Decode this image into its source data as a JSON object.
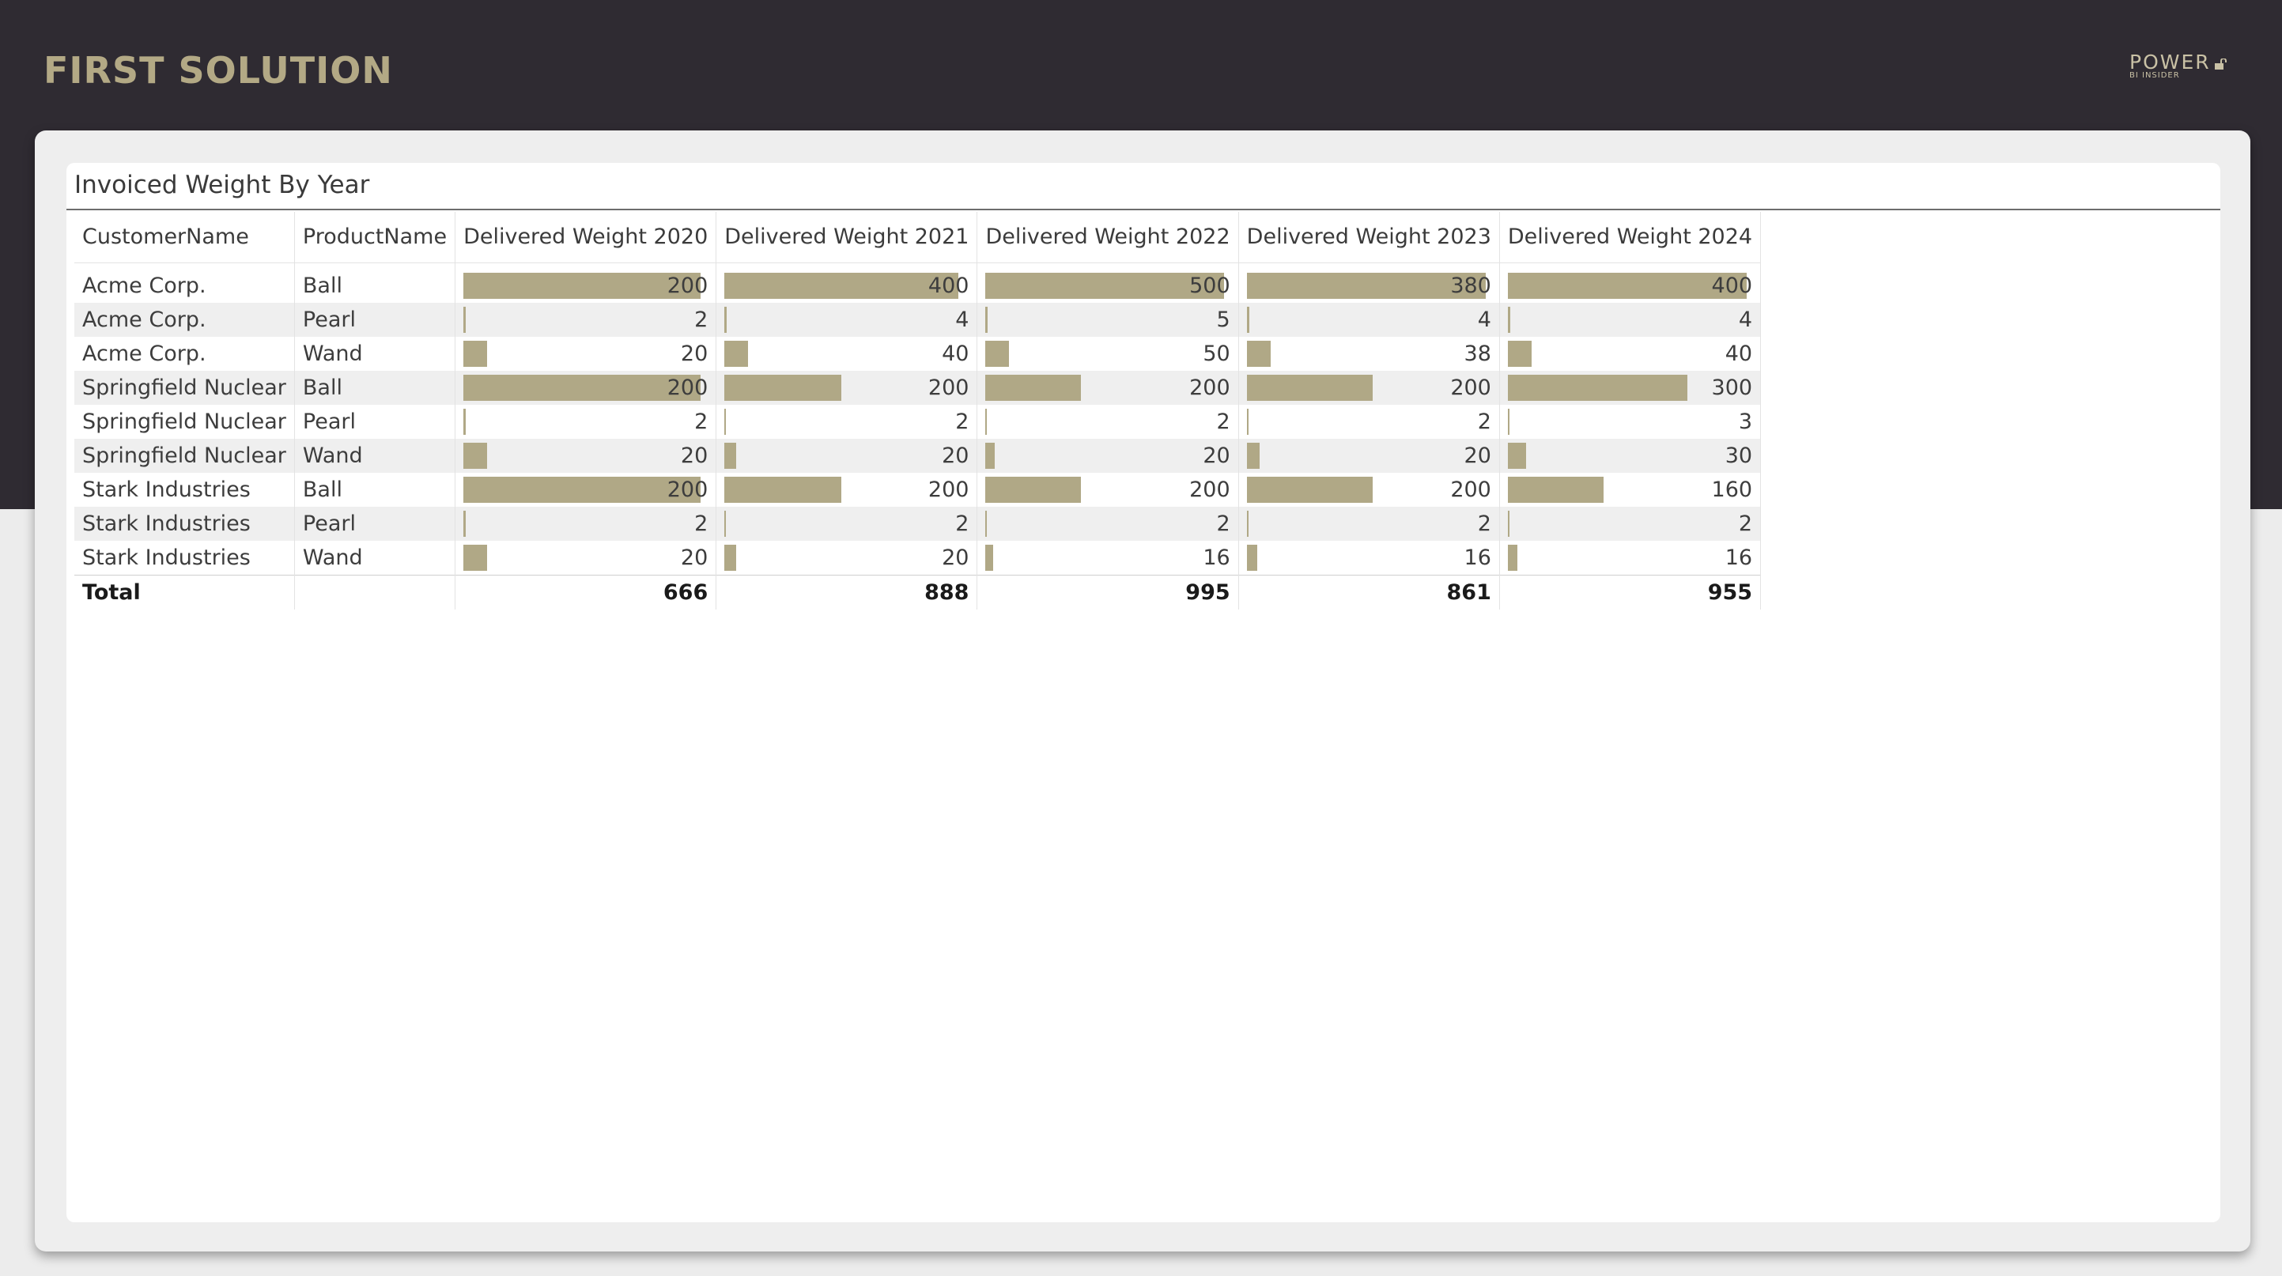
{
  "page": {
    "title": "FIRST SOLUTION",
    "logo": {
      "main": "POWER",
      "sub": "BI INSIDER"
    }
  },
  "colors": {
    "header_bg": "#2f2b32",
    "accent": "#b3a985",
    "bar": "#b0a886",
    "canvas": "#eeeeee"
  },
  "visual": {
    "title": "Invoiced Weight By Year",
    "columns": [
      "CustomerName",
      "ProductName",
      "Delivered Weight 2020",
      "Delivered Weight 2021",
      "Delivered Weight 2022",
      "Delivered Weight 2023",
      "Delivered Weight 2024"
    ],
    "rows": [
      {
        "customer": "Acme Corp.",
        "product": "Ball",
        "values": [
          200,
          400,
          500,
          380,
          400
        ]
      },
      {
        "customer": "Acme Corp.",
        "product": "Pearl",
        "values": [
          2,
          4,
          5,
          4,
          4
        ]
      },
      {
        "customer": "Acme Corp.",
        "product": "Wand",
        "values": [
          20,
          40,
          50,
          38,
          40
        ]
      },
      {
        "customer": "Springfield Nuclear",
        "product": "Ball",
        "values": [
          200,
          200,
          200,
          200,
          300
        ]
      },
      {
        "customer": "Springfield Nuclear",
        "product": "Pearl",
        "values": [
          2,
          2,
          2,
          2,
          3
        ]
      },
      {
        "customer": "Springfield Nuclear",
        "product": "Wand",
        "values": [
          20,
          20,
          20,
          20,
          30
        ]
      },
      {
        "customer": "Stark Industries",
        "product": "Ball",
        "values": [
          200,
          200,
          200,
          200,
          160
        ]
      },
      {
        "customer": "Stark Industries",
        "product": "Pearl",
        "values": [
          2,
          2,
          2,
          2,
          2
        ]
      },
      {
        "customer": "Stark Industries",
        "product": "Wand",
        "values": [
          20,
          20,
          16,
          16,
          16
        ]
      }
    ],
    "total": {
      "label": "Total",
      "values": [
        666,
        888,
        995,
        861,
        955
      ]
    }
  }
}
